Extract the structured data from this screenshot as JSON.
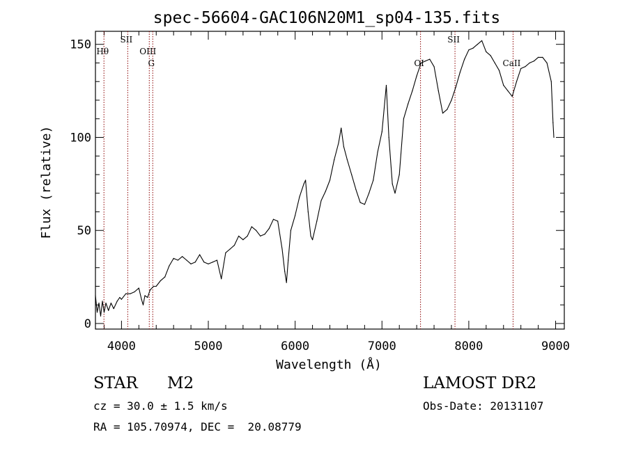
{
  "chart_data": {
    "type": "line",
    "title": "spec-56604-GAC106N20M1_sp04-135.fits",
    "xlabel": "Wavelength (Å)",
    "ylabel": "Flux (relative)",
    "xlim": [
      3700,
      9100
    ],
    "ylim": [
      -3,
      157
    ],
    "x_ticks": [
      4000,
      5000,
      6000,
      7000,
      8000,
      9000
    ],
    "y_ticks": [
      0,
      50,
      100,
      150
    ],
    "grid": false,
    "series": [
      {
        "color": "#000000",
        "points": [
          [
            3700,
            15
          ],
          [
            3720,
            6
          ],
          [
            3740,
            11
          ],
          [
            3760,
            4
          ],
          [
            3780,
            12
          ],
          [
            3800,
            6
          ],
          [
            3820,
            11
          ],
          [
            3850,
            7
          ],
          [
            3880,
            11
          ],
          [
            3910,
            8
          ],
          [
            3950,
            12
          ],
          [
            3980,
            14
          ],
          [
            4000,
            13
          ],
          [
            4050,
            16
          ],
          [
            4100,
            16
          ],
          [
            4150,
            17
          ],
          [
            4200,
            19
          ],
          [
            4230,
            13
          ],
          [
            4250,
            10
          ],
          [
            4270,
            15
          ],
          [
            4300,
            14
          ],
          [
            4330,
            18
          ],
          [
            4370,
            20
          ],
          [
            4400,
            20
          ],
          [
            4450,
            23
          ],
          [
            4500,
            25
          ],
          [
            4550,
            31
          ],
          [
            4600,
            35
          ],
          [
            4650,
            34
          ],
          [
            4700,
            36
          ],
          [
            4750,
            34
          ],
          [
            4800,
            32
          ],
          [
            4850,
            33
          ],
          [
            4900,
            37
          ],
          [
            4950,
            33
          ],
          [
            5000,
            32
          ],
          [
            5050,
            33
          ],
          [
            5100,
            34
          ],
          [
            5150,
            24
          ],
          [
            5200,
            38
          ],
          [
            5250,
            40
          ],
          [
            5300,
            42
          ],
          [
            5350,
            47
          ],
          [
            5400,
            45
          ],
          [
            5450,
            47
          ],
          [
            5500,
            52
          ],
          [
            5550,
            50
          ],
          [
            5600,
            47
          ],
          [
            5650,
            48
          ],
          [
            5700,
            51
          ],
          [
            5750,
            56
          ],
          [
            5800,
            55
          ],
          [
            5850,
            40
          ],
          [
            5880,
            28
          ],
          [
            5900,
            22
          ],
          [
            5920,
            34
          ],
          [
            5950,
            50
          ],
          [
            6000,
            58
          ],
          [
            6050,
            68
          ],
          [
            6100,
            75
          ],
          [
            6120,
            77
          ],
          [
            6150,
            60
          ],
          [
            6180,
            47
          ],
          [
            6200,
            45
          ],
          [
            6250,
            55
          ],
          [
            6300,
            66
          ],
          [
            6350,
            71
          ],
          [
            6400,
            77
          ],
          [
            6450,
            88
          ],
          [
            6500,
            97
          ],
          [
            6530,
            105
          ],
          [
            6560,
            95
          ],
          [
            6600,
            88
          ],
          [
            6650,
            80
          ],
          [
            6700,
            72
          ],
          [
            6750,
            65
          ],
          [
            6800,
            64
          ],
          [
            6850,
            70
          ],
          [
            6900,
            77
          ],
          [
            6950,
            92
          ],
          [
            7000,
            103
          ],
          [
            7050,
            128
          ],
          [
            7080,
            100
          ],
          [
            7120,
            75
          ],
          [
            7150,
            70
          ],
          [
            7200,
            80
          ],
          [
            7250,
            110
          ],
          [
            7300,
            118
          ],
          [
            7350,
            125
          ],
          [
            7400,
            133
          ],
          [
            7450,
            140
          ],
          [
            7500,
            141
          ],
          [
            7550,
            142
          ],
          [
            7600,
            138
          ],
          [
            7650,
            125
          ],
          [
            7700,
            113
          ],
          [
            7750,
            115
          ],
          [
            7800,
            120
          ],
          [
            7850,
            127
          ],
          [
            7900,
            135
          ],
          [
            7950,
            142
          ],
          [
            8000,
            147
          ],
          [
            8050,
            148
          ],
          [
            8100,
            150
          ],
          [
            8150,
            152
          ],
          [
            8200,
            146
          ],
          [
            8250,
            144
          ],
          [
            8300,
            140
          ],
          [
            8350,
            136
          ],
          [
            8400,
            128
          ],
          [
            8450,
            125
          ],
          [
            8500,
            122
          ],
          [
            8550,
            130
          ],
          [
            8600,
            137
          ],
          [
            8650,
            138
          ],
          [
            8700,
            140
          ],
          [
            8750,
            141
          ],
          [
            8800,
            143
          ],
          [
            8850,
            143
          ],
          [
            8900,
            140
          ],
          [
            8950,
            130
          ],
          [
            8970,
            108
          ],
          [
            8980,
            100
          ]
        ]
      }
    ],
    "markers": [
      {
        "label": "Hθ",
        "x": 3798,
        "row": 1
      },
      {
        "label": "SII",
        "x": 4072,
        "row": 0
      },
      {
        "label": "OIII",
        "x": 4320,
        "row": 1
      },
      {
        "label": "G",
        "x": 4360,
        "row": 2
      },
      {
        "label": "OI",
        "x": 7444,
        "row": 2
      },
      {
        "label": "SII",
        "x": 7841,
        "row": 0
      },
      {
        "label": "CaII",
        "x": 8510,
        "row": 2
      }
    ],
    "marker_color": "#8b0000",
    "line_color": "#000000"
  },
  "info": {
    "class_label": "STAR",
    "subclass": "M2",
    "survey": "LAMOST DR2",
    "cz_text": "cz = 30.0 ± 1.5 km/s",
    "obs_date_text": "Obs-Date: 20131107",
    "radec_text": "RA = 105.70974, DEC =  20.08779"
  }
}
